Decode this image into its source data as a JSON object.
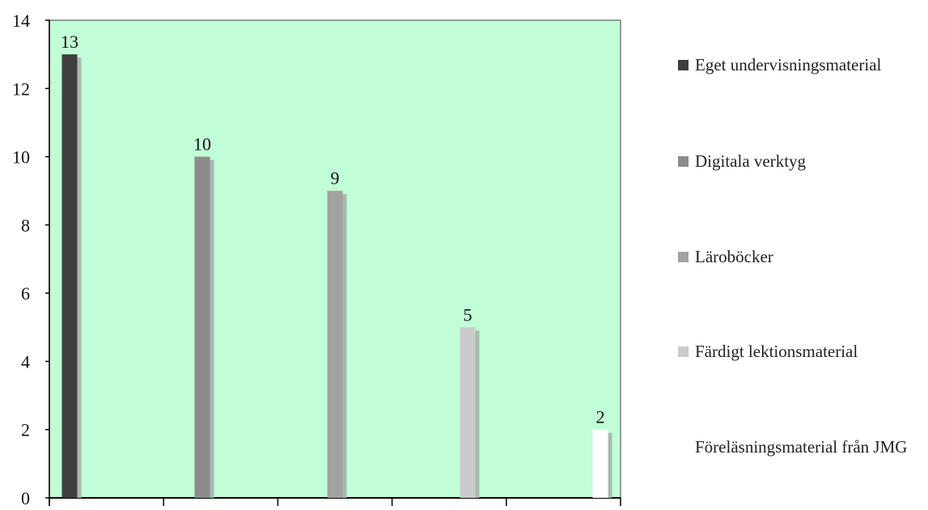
{
  "chart_data": {
    "type": "bar",
    "title": "",
    "xlabel": "",
    "ylabel": "",
    "ylim": [
      0,
      14
    ],
    "yticks": [
      0,
      2,
      4,
      6,
      8,
      10,
      12,
      14
    ],
    "grid": false,
    "legend_position": "right",
    "plot_background": "#c1fdd6",
    "series": [
      {
        "name": "Eget undervisningsmaterial",
        "value": 13,
        "label": "13",
        "color": "#3e3e3e"
      },
      {
        "name": "Digitala verktyg",
        "value": 10,
        "label": "10",
        "color": "#8c8c8c"
      },
      {
        "name": "Läroböcker",
        "value": 9,
        "label": "9",
        "color": "#a2a2a2"
      },
      {
        "name": "Färdigt lektionsmaterial",
        "value": 5,
        "label": "5",
        "color": "#cbcbcb"
      },
      {
        "name": "Föreläsningsmaterial från JMG",
        "value": 2,
        "label": "2",
        "color": "#ffffff"
      }
    ]
  }
}
